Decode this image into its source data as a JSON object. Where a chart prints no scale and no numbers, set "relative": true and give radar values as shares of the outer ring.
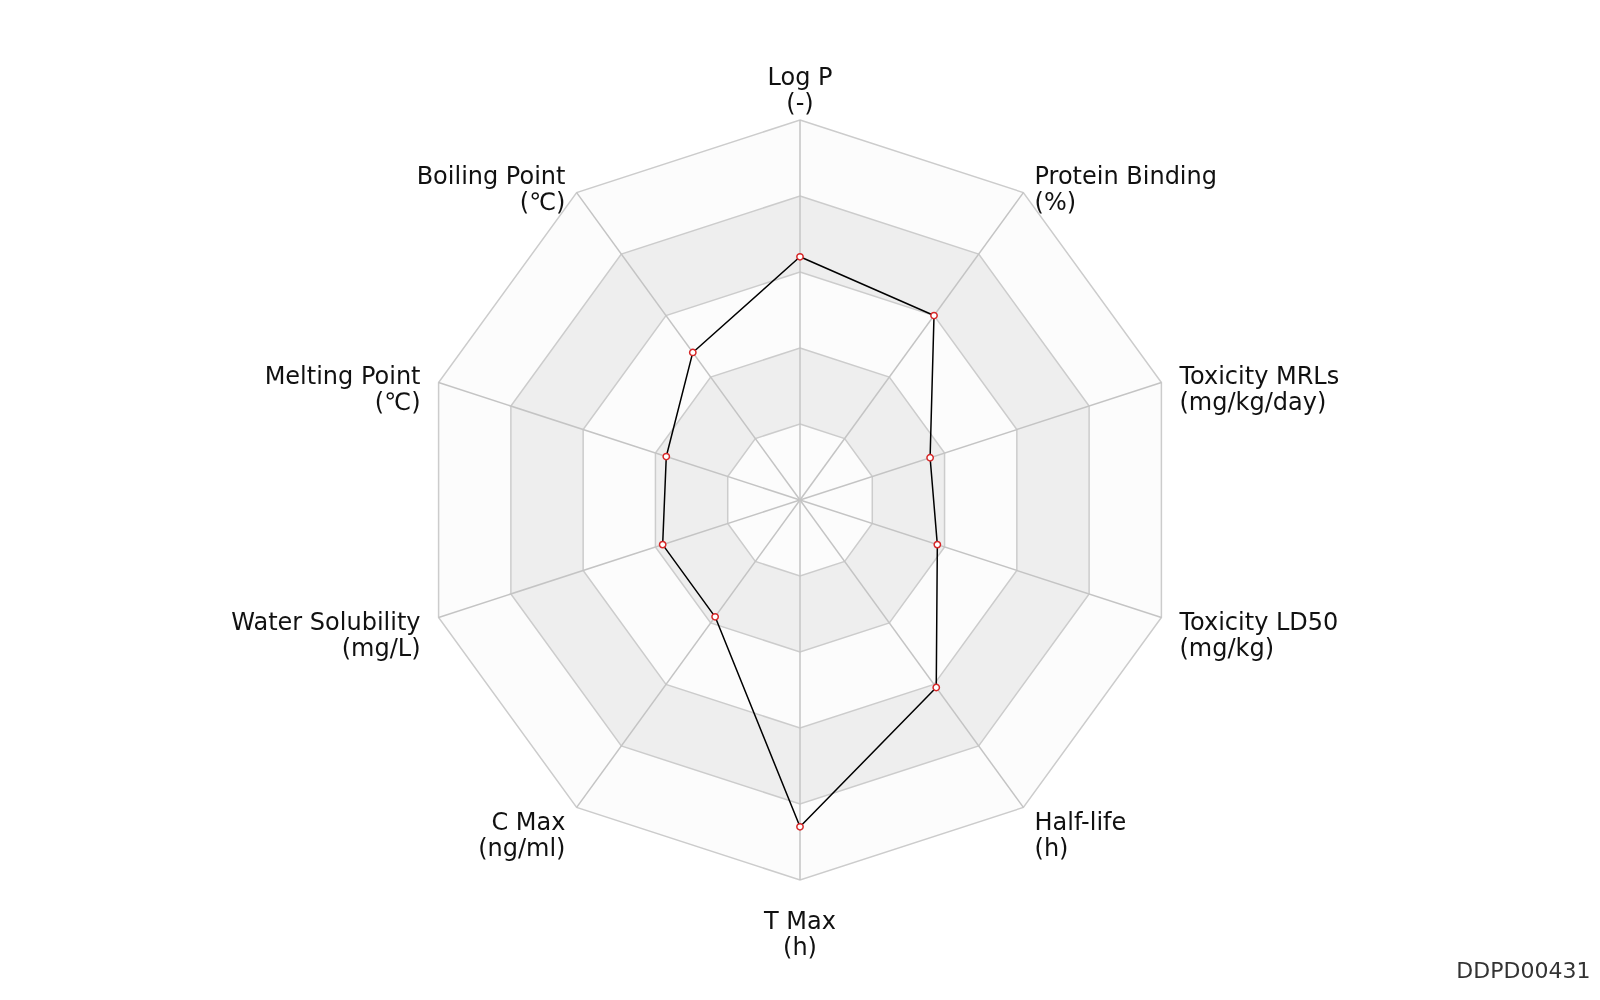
{
  "chart_data": {
    "type": "radar",
    "relative": true,
    "categories": [
      "Log P\n(-)",
      "Protein Binding\n(%)",
      "Toxicity MRLs\n(mg/kg/day)",
      "Toxicity LD50\n(mg/kg)",
      "Half-life\n(h)",
      "T Max\n(h)",
      "C Max\n(ng/ml)",
      "Water Solubility\n(mg/L)",
      "Melting Point\n(℃)",
      "Boiling Point\n(℃)"
    ],
    "series": [
      {
        "color": "#000000",
        "values": [
          0.64,
          0.6,
          0.36,
          0.38,
          0.61,
          0.86,
          0.38,
          0.38,
          0.37,
          0.48
        ]
      }
    ],
    "marker": "circle",
    "annotations": [
      "DDPD00431"
    ]
  }
}
